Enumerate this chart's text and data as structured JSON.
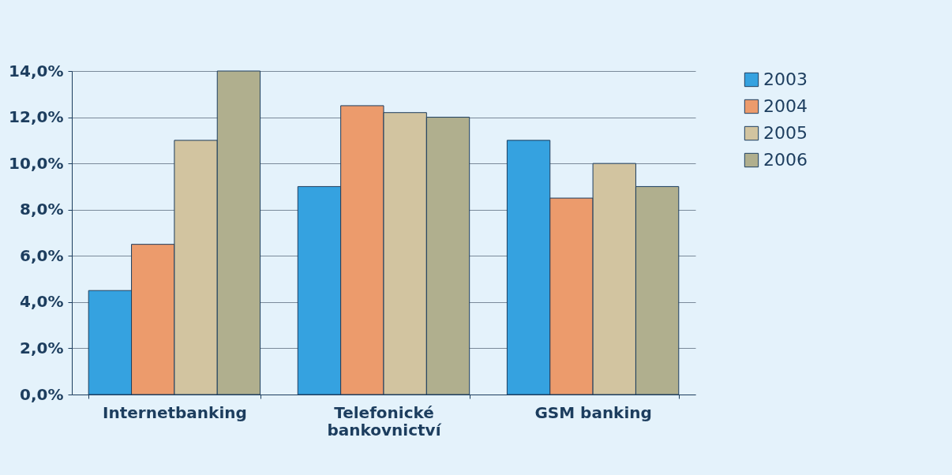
{
  "chart_data": {
    "type": "bar",
    "categories": [
      "Internetbanking",
      "Telefonické bankovnictví",
      "GSM banking"
    ],
    "series": [
      {
        "name": "2003",
        "color": "#35a2e0",
        "values": [
          4.5,
          9.0,
          11.0
        ]
      },
      {
        "name": "2004",
        "color": "#ec9b6c",
        "values": [
          6.5,
          12.5,
          8.5
        ]
      },
      {
        "name": "2005",
        "color": "#d2c4a0",
        "values": [
          11.0,
          12.2,
          10.0
        ]
      },
      {
        "name": "2006",
        "color": "#b0af8e",
        "values": [
          14.0,
          12.0,
          9.0
        ]
      }
    ],
    "ylim": [
      0,
      14
    ],
    "yticks": [
      {
        "value": 0,
        "label": "0,0%"
      },
      {
        "value": 2,
        "label": "2,0%"
      },
      {
        "value": 4,
        "label": "4,0%"
      },
      {
        "value": 6,
        "label": "6,0%"
      },
      {
        "value": 8,
        "label": "8,0%"
      },
      {
        "value": 10,
        "label": "10,0%"
      },
      {
        "value": 12,
        "label": "12,0%"
      },
      {
        "value": 14,
        "label": "14,0%"
      }
    ],
    "grid": "y",
    "legend": "right"
  }
}
